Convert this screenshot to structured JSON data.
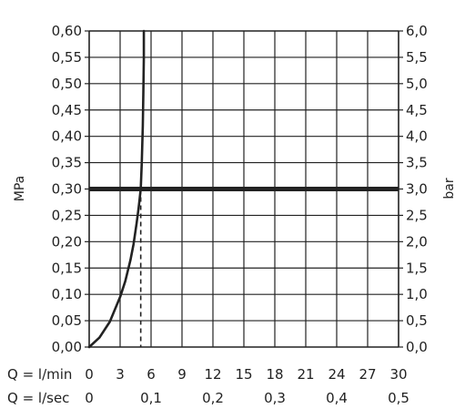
{
  "chart_data": {
    "type": "line",
    "title": "",
    "ylabel_left": "MPa",
    "ylabel_right": "bar",
    "x_row_labels": [
      "Q = l/min",
      "Q = l/sec"
    ],
    "xlim_lmin": [
      0,
      30
    ],
    "ylim_mpa": [
      0,
      0.6
    ],
    "ylim_bar": [
      0,
      6
    ],
    "grid": true,
    "x_ticks_lmin": [
      "0",
      "3",
      "6",
      "9",
      "12",
      "15",
      "18",
      "21",
      "24",
      "27",
      "30"
    ],
    "x_ticks_lsec": [
      "0",
      "0,1",
      "0,2",
      "0,3",
      "0,4",
      "0,5"
    ],
    "y_ticks_mpa": [
      "0,00",
      "0,05",
      "0,10",
      "0,15",
      "0,20",
      "0,25",
      "0,30",
      "0,35",
      "0,40",
      "0,45",
      "0,50",
      "0,55",
      "0,60"
    ],
    "y_ticks_bar": [
      "0,0",
      "0,5",
      "1,0",
      "1,5",
      "2,0",
      "2,5",
      "3,0",
      "3,5",
      "4,0",
      "4,5",
      "5,0",
      "5,5",
      "6,0"
    ],
    "series": [
      {
        "x": [
          0,
          1,
          2,
          3,
          3.5,
          4,
          4.3,
          4.6,
          4.8,
          5.0,
          5.1,
          5.2,
          5.25,
          5.3,
          5.3
        ],
        "y": [
          0,
          0.018,
          0.048,
          0.095,
          0.125,
          0.165,
          0.195,
          0.235,
          0.265,
          0.3,
          0.35,
          0.42,
          0.48,
          0.55,
          0.6
        ]
      }
    ],
    "reference_line_mpa": 0.3,
    "reference_drop_x": 5.0,
    "colors": {
      "curve": "#222222",
      "grid": "#222222",
      "reference": "#222222"
    }
  }
}
